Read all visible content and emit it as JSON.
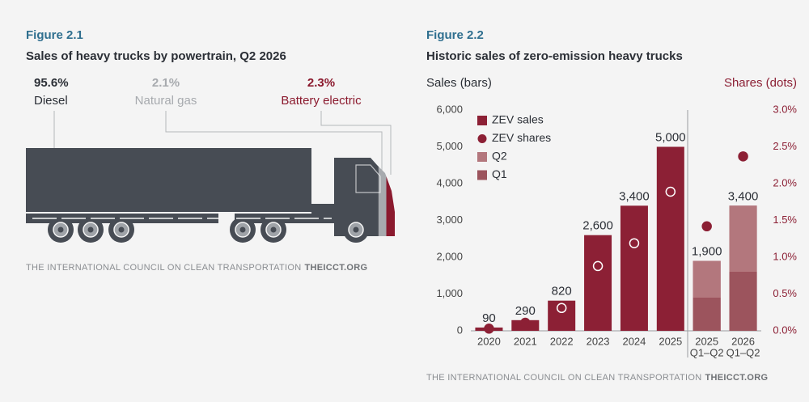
{
  "chart_data": [
    {
      "type": "proportion",
      "figure": "Figure 2.1",
      "title": "Sales of heavy trucks by powertrain, Q2 2026",
      "categories": [
        "Diesel",
        "Natural gas",
        "Battery electric"
      ],
      "values": [
        95.6,
        2.1,
        2.3
      ],
      "value_labels": [
        "95.6%",
        "2.1%",
        "2.3%"
      ],
      "colors": [
        "#474c54",
        "#a7aaae",
        "#8b1a2e"
      ],
      "source": "THE INTERNATIONAL COUNCIL ON CLEAN TRANSPORTATION",
      "source_url": "THEICCT.ORG"
    },
    {
      "type": "bar",
      "figure": "Figure 2.2",
      "title": "Historic sales of zero-emission heavy trucks",
      "y_label": "Sales (bars)",
      "y2_label": "Shares (dots)",
      "categories": [
        "2020",
        "2021",
        "2022",
        "2023",
        "2024",
        "2025",
        [
          "2025",
          "Q1–Q2"
        ],
        [
          "2026",
          "Q1–Q2"
        ]
      ],
      "series": [
        {
          "name": "ZEV sales",
          "color": "#8c2035",
          "values": [
            90,
            290,
            820,
            2600,
            3400,
            5000,
            1900,
            3400
          ],
          "value_labels": [
            "90",
            "290",
            "820",
            "2,600",
            "3,400",
            "5,000",
            "1,900",
            "3,400"
          ]
        },
        {
          "name": "ZEV shares",
          "color": "#8c2035",
          "axis": "y2",
          "values": [
            0.03,
            0.11,
            0.31,
            0.88,
            1.19,
            1.89,
            1.42,
            2.37
          ]
        },
        {
          "name": "Q2",
          "color": "#b3777d",
          "values": [
            null,
            null,
            null,
            null,
            null,
            null,
            1000,
            1800
          ]
        },
        {
          "name": "Q1",
          "color": "#9c545d",
          "values": [
            null,
            null,
            null,
            null,
            null,
            null,
            900,
            1600
          ]
        }
      ],
      "ylim": [
        0,
        6000
      ],
      "yticks": [
        0,
        {
          "value": 1000,
          "label": "1,000"
        },
        {
          "value": 2000,
          "label": "2,000"
        },
        {
          "value": 3000,
          "label": "3,000"
        },
        {
          "value": 4000,
          "label": "4,000"
        },
        {
          "value": 5000,
          "label": "5,000"
        },
        {
          "value": 6000,
          "label": "6,000"
        }
      ],
      "y2lim": [
        0,
        3
      ],
      "y2ticks": [
        {
          "value": 0,
          "label": "0.0%"
        },
        {
          "value": 0.5,
          "label": "0.5%"
        },
        {
          "value": 1,
          "label": "1.0%"
        },
        {
          "value": 1.5,
          "label": "1.5%"
        },
        {
          "value": 2,
          "label": "2.0%"
        },
        {
          "value": 2.5,
          "label": "2.5%"
        },
        {
          "value": 3,
          "label": "3.0%"
        }
      ],
      "source": "THE INTERNATIONAL COUNCIL ON CLEAN TRANSPORTATION",
      "source_url": "THEICCT.ORG"
    }
  ]
}
